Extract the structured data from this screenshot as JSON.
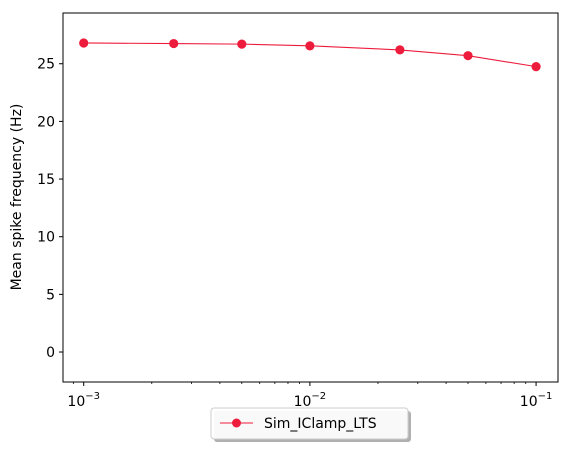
{
  "chart_data": {
    "type": "line",
    "xscale": "log",
    "xlabel": "",
    "ylabel": "Mean spike frequency (Hz)",
    "xlim": [
      0.00081,
      0.125
    ],
    "ylim": [
      -2.6,
      29.4
    ],
    "x_ticks": [
      {
        "value": 0.001,
        "base": "10",
        "exp": "−3"
      },
      {
        "value": 0.01,
        "base": "10",
        "exp": "−2"
      },
      {
        "value": 0.1,
        "base": "10",
        "exp": "−1"
      }
    ],
    "y_ticks": [
      0,
      5,
      10,
      15,
      20,
      25
    ],
    "grid": false,
    "legend_position": "bottom-center",
    "series": [
      {
        "name": "Sim_IClamp_LTS",
        "color": "#ee1c3c",
        "marker": "circle",
        "x": [
          0.001,
          0.0025,
          0.005,
          0.01,
          0.025,
          0.05,
          0.1
        ],
        "y": [
          26.8,
          26.75,
          26.7,
          26.55,
          26.2,
          25.7,
          24.75
        ]
      }
    ]
  }
}
